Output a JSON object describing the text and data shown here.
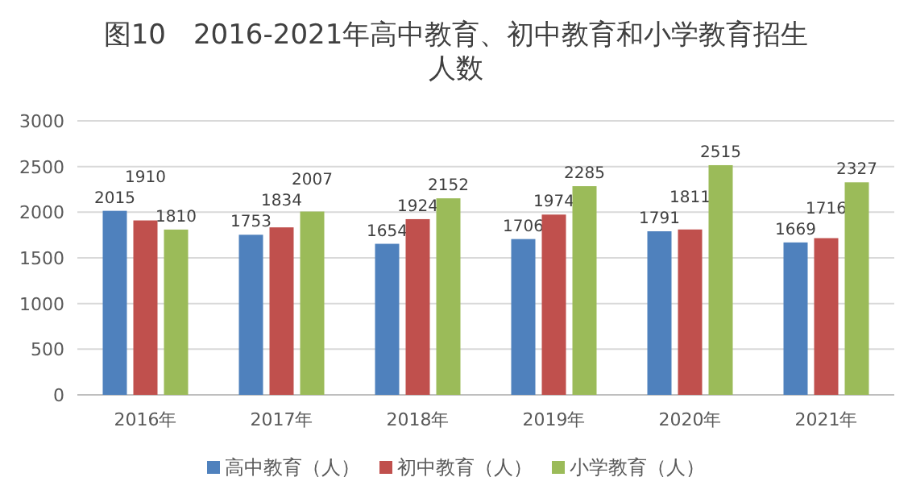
{
  "chart_data": {
    "type": "bar",
    "title": "图10　2016-2021年高中教育、初中教育和小学教育招生人数",
    "categories": [
      "2016年",
      "2017年",
      "2018年",
      "2019年",
      "2020年",
      "2021年"
    ],
    "series": [
      {
        "name": "高中教育（人）",
        "color": "#4f81bd",
        "values": [
          2015,
          1753,
          1654,
          1706,
          1791,
          1669
        ]
      },
      {
        "name": "初中教育（人）",
        "color": "#c0504d",
        "values": [
          1910,
          1834,
          1924,
          1974,
          1811,
          1716
        ]
      },
      {
        "name": "小学教育（人）",
        "color": "#9bbb59",
        "values": [
          1810,
          2007,
          2152,
          2285,
          2515,
          2327
        ]
      }
    ],
    "ylim": [
      0,
      3000
    ],
    "yticks": [
      0,
      500,
      1000,
      1500,
      2000,
      2500,
      3000
    ],
    "grid": "y",
    "legend": "bottom",
    "data_labels": true
  }
}
